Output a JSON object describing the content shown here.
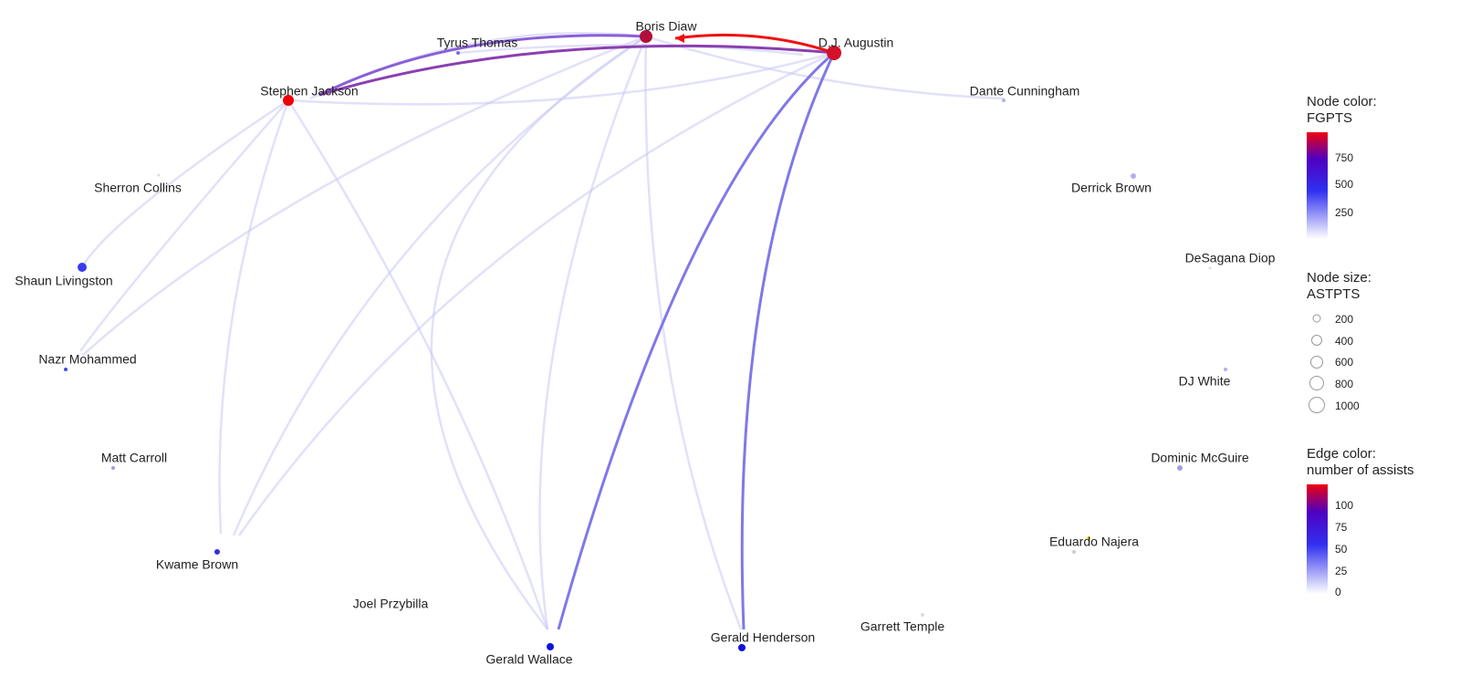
{
  "nodes": [
    {
      "label": "Boris Diaw"
    },
    {
      "label": "D.J. Augustin"
    },
    {
      "label": "Tyrus Thomas"
    },
    {
      "label": "Stephen Jackson"
    },
    {
      "label": "Dante Cunningham"
    },
    {
      "label": "Sherron Collins"
    },
    {
      "label": "Derrick Brown"
    },
    {
      "label": "Shaun Livingston"
    },
    {
      "label": "DeSagana Diop"
    },
    {
      "label": "Nazr Mohammed"
    },
    {
      "label": "DJ White"
    },
    {
      "label": "Matt Carroll"
    },
    {
      "label": "Dominic McGuire"
    },
    {
      "label": "Eduardo Najera"
    },
    {
      "label": "Kwame Brown"
    },
    {
      "label": "Joel Przybilla"
    },
    {
      "label": "Garrett Temple"
    },
    {
      "label": "Gerald Wallace"
    },
    {
      "label": "Gerald Henderson"
    }
  ],
  "legend": {
    "node_color": {
      "title": [
        "Node color:",
        "FGPTS"
      ],
      "labels": [
        750,
        500,
        250
      ]
    },
    "node_size": {
      "title": [
        "Node size:",
        "ASTPTS"
      ],
      "labels": [
        200,
        400,
        600,
        800,
        1000
      ]
    },
    "edge_color": {
      "title": [
        "Edge color:",
        "number of assists"
      ],
      "labels": [
        100,
        75,
        50,
        25,
        0
      ]
    }
  }
}
